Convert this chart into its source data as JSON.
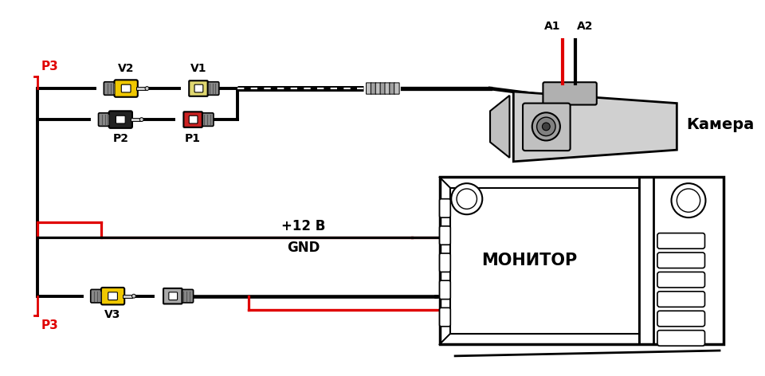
{
  "bg_color": "#ffffff",
  "lc": "#000000",
  "rc": "#e00000",
  "yc": "#f0c800",
  "gc": "#b0b0b0",
  "wc": "#ffffff",
  "labels": {
    "P3_top": "P3",
    "P3_bottom": "P3",
    "V2": "V2",
    "V1": "V1",
    "P2": "P2",
    "P1": "P1",
    "V3": "V3",
    "A1": "A1",
    "A2": "A2",
    "camera": "Камера",
    "plus12v": "+12 В",
    "gnd": "GND",
    "monitor": "МОНИТОР"
  },
  "figsize": [
    9.6,
    4.72
  ],
  "dpi": 100
}
